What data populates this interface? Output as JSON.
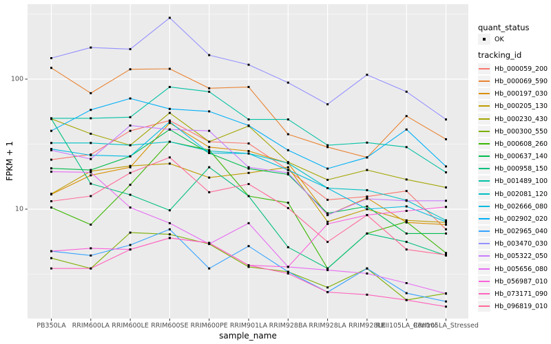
{
  "figure": {
    "background": "#FFFFFF",
    "panel_background": "#EBEBEB",
    "grid_color": "#FFFFFF",
    "tick_color": "#333333",
    "tick_label_color": "#4D4D4D",
    "point_color": "#000000"
  },
  "axes": {
    "x_title": "sample_name",
    "y_title": "FPKM + 1",
    "y_tick_labels": [
      "100",
      "10"
    ],
    "y_tick_values": [
      100,
      10
    ]
  },
  "legend": {
    "quant_title": "quant_status",
    "quant_items": [
      {
        "label": "OK",
        "marker": "point"
      }
    ],
    "tracking_title": "tracking_id"
  },
  "chart_data": {
    "type": "line",
    "title": "",
    "xlabel": "sample_name",
    "ylabel": "FPKM + 1",
    "y_scale": "log10",
    "ylim": [
      1.5,
      370
    ],
    "y_ticks": [
      10,
      100
    ],
    "grid": true,
    "legend_position": "right",
    "point_marker": "black-dot",
    "categories": [
      "PB350LA",
      "RRIM600LA",
      "RRIM600LE",
      "RRIM600SE",
      "RRIM600PE",
      "RRIM901LA",
      "RRIM928BA",
      "RRIM928LA",
      "RRIM928LE",
      "RRII105LA_Control",
      "RRII105LA_Stressed"
    ],
    "series": [
      {
        "name": "Hb_000059_200",
        "color": "#F8766D",
        "values": [
          24,
          26.3,
          40,
          48,
          33,
          32,
          20,
          11.8,
          12.5,
          13.8,
          7.0
        ]
      },
      {
        "name": "Hb_000069_590",
        "color": "#EA8331",
        "values": [
          122,
          78,
          119,
          120,
          85,
          87,
          37.7,
          30,
          25,
          52,
          34.5
        ]
      },
      {
        "name": "Hb_000197_030",
        "color": "#D89000",
        "values": [
          13.0,
          18.2,
          21,
          46,
          30,
          28,
          22.6,
          9.0,
          12.2,
          7.9,
          7.6
        ]
      },
      {
        "name": "Hb_000205_130",
        "color": "#C09B00",
        "values": [
          13.1,
          19.6,
          21.5,
          22.4,
          17.5,
          19,
          21,
          8.0,
          10,
          8.2,
          7.9
        ]
      },
      {
        "name": "Hb_000230_430",
        "color": "#A3A500",
        "values": [
          49.5,
          38,
          31,
          55,
          33,
          43.6,
          23,
          16.8,
          20,
          16.9,
          14.7
        ]
      },
      {
        "name": "Hb_000300_550",
        "color": "#7CAE00",
        "values": [
          4.2,
          3.5,
          6.6,
          6.4,
          5.4,
          3.6,
          3.3,
          2.5,
          3.5,
          2.0,
          2.25
        ]
      },
      {
        "name": "Hb_000608_260",
        "color": "#39B600",
        "values": [
          10.3,
          7.6,
          15.4,
          33,
          28.5,
          12.6,
          11.2,
          3.5,
          6.5,
          8.0,
          4.6
        ]
      },
      {
        "name": "Hb_000637_140",
        "color": "#00BB4E",
        "values": [
          20.6,
          20.0,
          25.5,
          41,
          27,
          20.5,
          18.5,
          9.3,
          10.5,
          6.5,
          6.5
        ]
      },
      {
        "name": "Hb_000958_150",
        "color": "#00BF7D",
        "values": [
          49.5,
          15.7,
          12.9,
          9.8,
          21,
          12.6,
          5.1,
          3.5,
          6.5,
          5.6,
          4.4
        ]
      },
      {
        "name": "Hb_001489_100",
        "color": "#00C1A3",
        "values": [
          50,
          50,
          51,
          87,
          80,
          49,
          49,
          31,
          32.5,
          30,
          19.2
        ]
      },
      {
        "name": "Hb_002081_120",
        "color": "#00BFC4",
        "values": [
          32.3,
          32.3,
          31,
          33,
          28,
          26.8,
          22.6,
          14.5,
          14,
          11.7,
          8.2
        ]
      },
      {
        "name": "Hb_002666_080",
        "color": "#00BAE0",
        "values": [
          29,
          26,
          25.5,
          47,
          27,
          26.8,
          20,
          14.5,
          10,
          10.5,
          8.0
        ]
      },
      {
        "name": "Hb_002902_020",
        "color": "#00B0F6",
        "values": [
          40,
          58,
          71,
          59,
          56.5,
          44,
          28.4,
          20.5,
          25,
          41,
          21.3
        ]
      },
      {
        "name": "Hb_002965_040",
        "color": "#35A2FF",
        "values": [
          4.75,
          4.4,
          5.3,
          7.0,
          3.5,
          5.2,
          3.3,
          2.3,
          3.5,
          2.26,
          1.95
        ]
      },
      {
        "name": "Hb_003470_030",
        "color": "#9590FF",
        "values": [
          145,
          175,
          170,
          296,
          153,
          129,
          94,
          64,
          108,
          80,
          49
        ]
      },
      {
        "name": "Hb_005322_050",
        "color": "#C77CFF",
        "values": [
          28.4,
          24.3,
          44,
          41,
          40,
          21,
          19,
          9.0,
          12.0,
          11.6,
          11.6
        ]
      },
      {
        "name": "Hb_005656_080",
        "color": "#E76BF3",
        "values": [
          19.4,
          19.2,
          10.3,
          7.8,
          5.4,
          7.8,
          3.6,
          3.4,
          3.2,
          2.7,
          2.24
        ]
      },
      {
        "name": "Hb_056987_010",
        "color": "#FA62DB",
        "values": [
          4.75,
          5.0,
          4.9,
          6.0,
          5.5,
          3.7,
          3.6,
          7.7,
          9.0,
          9.7,
          10.4
        ]
      },
      {
        "name": "Hb_073171_090",
        "color": "#FF62BC",
        "values": [
          3.5,
          3.5,
          4.9,
          6.0,
          5.5,
          3.7,
          3.2,
          2.3,
          2.2,
          2.0,
          1.78
        ]
      },
      {
        "name": "Hb_096819_010",
        "color": "#FF6A98",
        "values": [
          11.5,
          12.6,
          19,
          25,
          13.5,
          15.6,
          10.2,
          5.6,
          9.0,
          4.9,
          4.45
        ]
      }
    ]
  }
}
